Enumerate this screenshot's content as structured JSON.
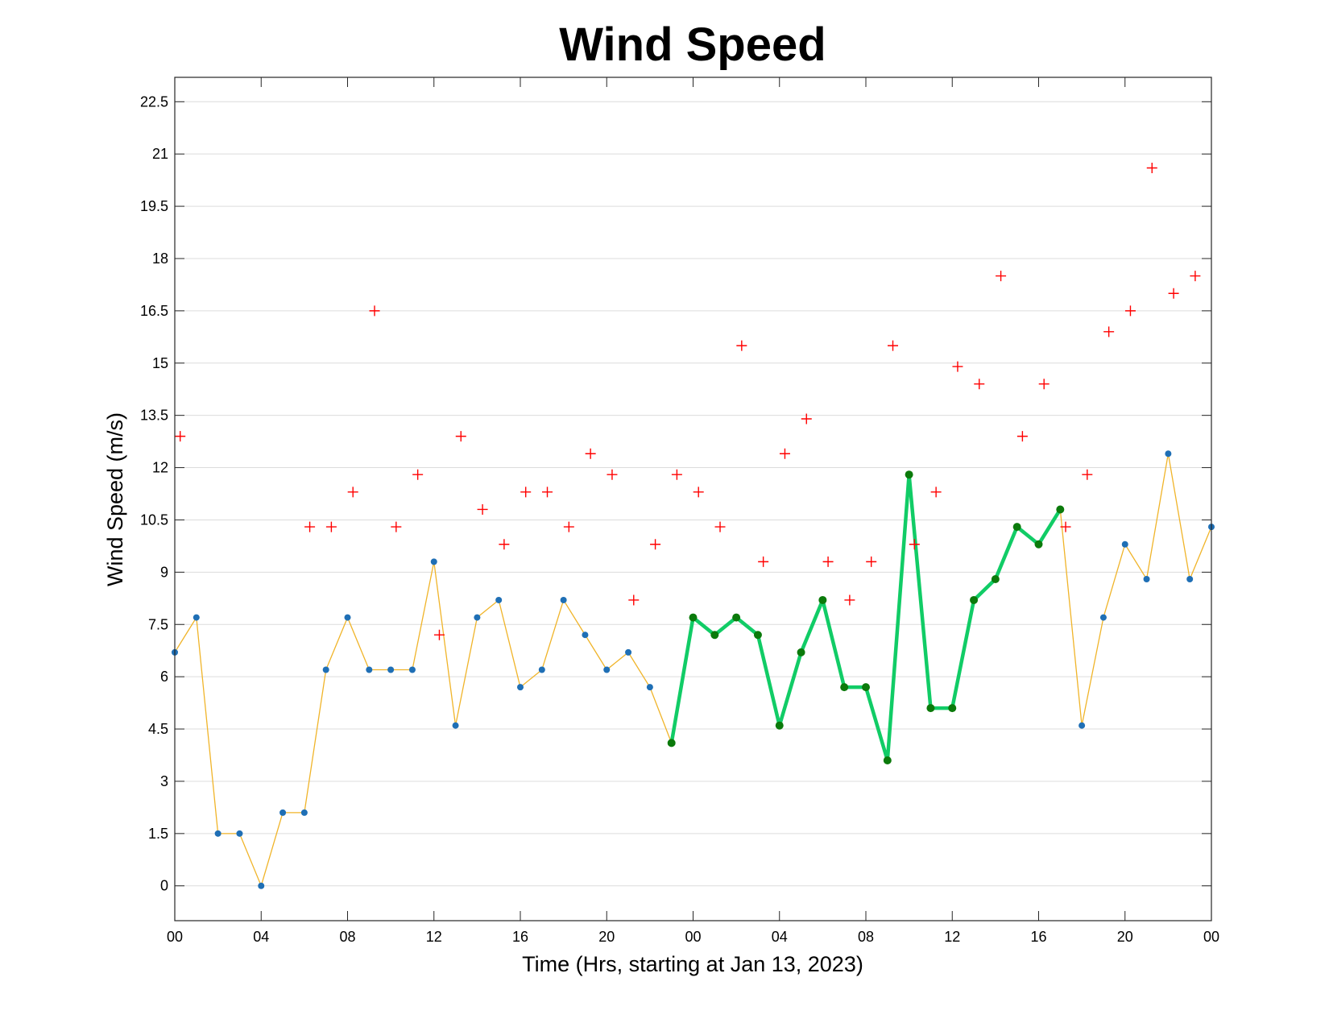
{
  "chart_data": {
    "type": "line",
    "title": "Wind Speed",
    "xlabel": "Time (Hrs, starting at Jan 13, 2023)",
    "ylabel": "Wind Speed (m/s)",
    "x_unit": "hours",
    "xlim": [
      0,
      48
    ],
    "ylim": [
      -1.0,
      23.2
    ],
    "yticks": [
      0,
      1.5,
      3,
      4.5,
      6,
      7.5,
      9,
      10.5,
      12,
      13.5,
      15,
      16.5,
      18,
      19.5,
      21,
      22.5
    ],
    "ytick_labels": [
      "0",
      "1.5",
      "3",
      "4.5",
      "6",
      "7.5",
      "9",
      "10.5",
      "12",
      "13.5",
      "15",
      "16.5",
      "18",
      "19.5",
      "21",
      "22.5"
    ],
    "xticks": [
      0,
      4,
      8,
      12,
      16,
      20,
      24,
      28,
      32,
      36,
      40,
      44,
      48
    ],
    "xtick_labels": [
      "00",
      "04",
      "08",
      "12",
      "16",
      "20",
      "00",
      "04",
      "08",
      "12",
      "16",
      "20",
      "00"
    ],
    "grid": "horizontal",
    "series": [
      {
        "marker": "dot",
        "color": "#f0b429",
        "marker_color": "#1f6fb5",
        "x": [
          0,
          1,
          2,
          3,
          4,
          5,
          6,
          7,
          8,
          9,
          10,
          11,
          12,
          13,
          14,
          15,
          16,
          17,
          18,
          19,
          20,
          21,
          22,
          23,
          24,
          25,
          26,
          27,
          28,
          29,
          30,
          31,
          32,
          33,
          34,
          35,
          36,
          37,
          38,
          39,
          40,
          41,
          42,
          43,
          44,
          45,
          46,
          47,
          48
        ],
        "values": [
          6.7,
          7.7,
          1.5,
          1.5,
          0,
          2.1,
          2.1,
          6.2,
          7.7,
          6.2,
          6.2,
          6.2,
          9.3,
          4.6,
          7.7,
          8.2,
          5.7,
          6.2,
          8.2,
          7.2,
          6.2,
          6.7,
          5.7,
          4.1,
          7.7,
          7.2,
          7.7,
          7.2,
          4.6,
          6.7,
          8.2,
          5.7,
          5.7,
          3.6,
          11.8,
          5.1,
          5.1,
          8.2,
          8.8,
          10.3,
          9.8,
          10.8,
          4.6,
          7.7,
          9.8,
          8.8,
          12.4,
          8.8,
          10.3
        ]
      },
      {
        "marker": "dot",
        "color": "#11cc66",
        "marker_color": "#0b7a0b",
        "x": [
          23,
          24,
          25,
          26,
          27,
          28,
          29,
          30,
          31,
          32,
          33,
          34,
          35,
          36,
          37,
          38,
          39,
          40,
          41
        ],
        "values": [
          4.1,
          7.7,
          7.2,
          7.7,
          7.2,
          4.6,
          6.7,
          8.2,
          5.7,
          5.7,
          3.6,
          11.8,
          5.1,
          5.1,
          8.2,
          8.8,
          10.3,
          9.8,
          10.8
        ]
      },
      {
        "marker": "plus",
        "color": "#ff0000",
        "x": [
          0.25,
          6.25,
          7.25,
          8.25,
          9.25,
          10.25,
          11.25,
          12.25,
          13.25,
          14.25,
          15.25,
          16.25,
          17.25,
          18.25,
          19.25,
          20.25,
          21.25,
          22.25,
          23.25,
          24.25,
          25.25,
          26.25,
          27.25,
          28.25,
          29.25,
          30.25,
          31.25,
          32.25,
          33.25,
          34.25,
          35.25,
          36.25,
          37.25,
          38.25,
          39.25,
          40.25,
          41.25,
          42.25,
          43.25,
          44.25,
          45.25,
          46.25,
          47.25
        ],
        "values": [
          12.9,
          10.3,
          10.3,
          11.3,
          16.5,
          10.3,
          11.8,
          7.2,
          12.9,
          10.8,
          9.8,
          11.3,
          11.3,
          10.3,
          12.4,
          11.8,
          8.2,
          9.8,
          11.8,
          11.3,
          10.3,
          15.5,
          9.3,
          12.4,
          13.4,
          9.3,
          8.2,
          9.3,
          15.5,
          9.8,
          11.3,
          14.9,
          14.4,
          17.5,
          12.9,
          14.4,
          10.3,
          11.8,
          15.9,
          16.5,
          20.6,
          17.0,
          17.5
        ]
      }
    ]
  }
}
